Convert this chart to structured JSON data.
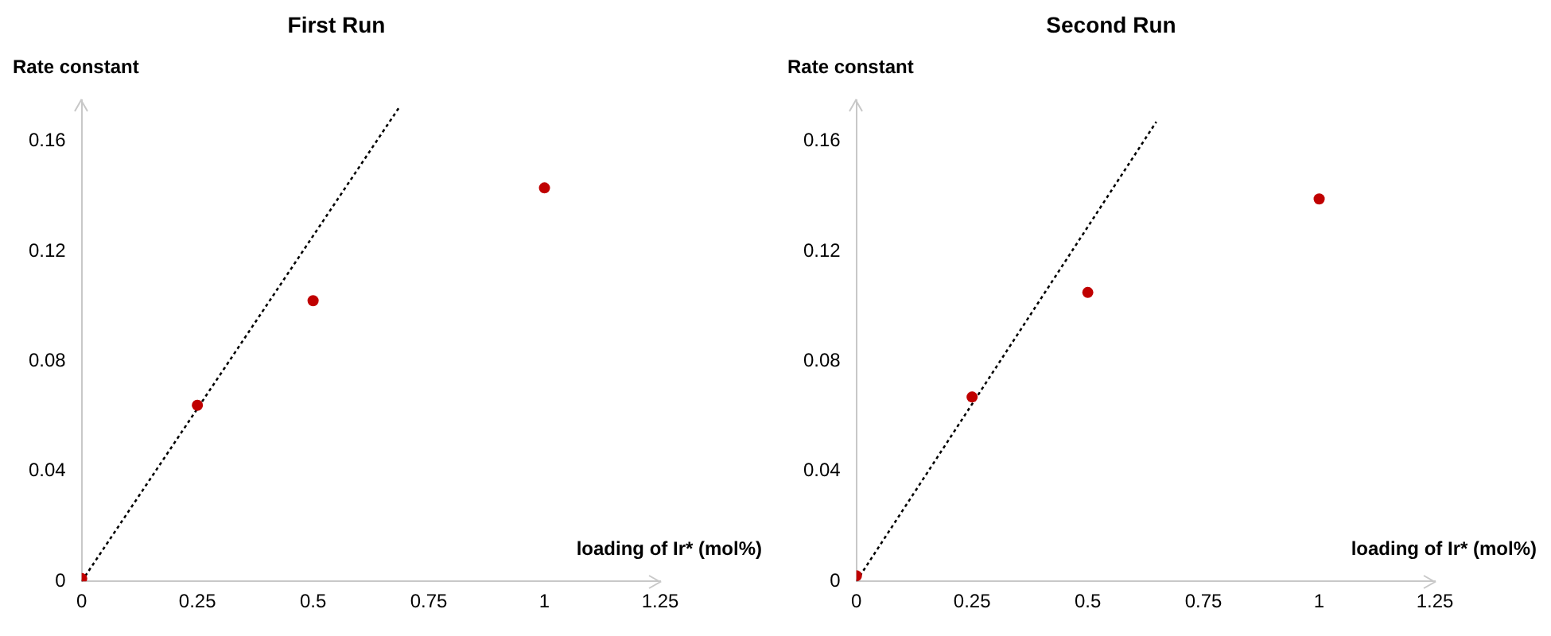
{
  "chart_data": [
    {
      "type": "scatter",
      "title": "First Run",
      "xlabel": "loading of Ir* (mol%)",
      "ylabel": "Rate constant",
      "xlim": [
        0,
        1.25
      ],
      "xticks": [
        0,
        0.25,
        0.5,
        0.75,
        1,
        1.25
      ],
      "ylim": [
        0,
        0.175
      ],
      "yticks": [
        0,
        0.04,
        0.08,
        0.12,
        0.16
      ],
      "grid": false,
      "legend": false,
      "marker": "circle",
      "series": [
        {
          "color": "#c00000",
          "x": [
            0,
            0.25,
            0.5,
            1
          ],
          "values": [
            0.001,
            0.064,
            0.102,
            0.143
          ]
        },
        {
          "type": "line",
          "color": "#000000",
          "line_style": "dotted",
          "marker": "none",
          "x": [
            0,
            0.685
          ],
          "values": [
            0,
            0.172
          ]
        }
      ]
    },
    {
      "type": "scatter",
      "title": "Second Run",
      "xlabel": "loading of Ir* (mol%)",
      "ylabel": "Rate constant",
      "xlim": [
        0,
        1.25
      ],
      "xticks": [
        0,
        0.25,
        0.5,
        0.75,
        1,
        1.25
      ],
      "ylim": [
        0,
        0.175
      ],
      "yticks": [
        0,
        0.04,
        0.08,
        0.12,
        0.16
      ],
      "grid": false,
      "legend": false,
      "marker": "circle",
      "series": [
        {
          "color": "#c00000",
          "x": [
            0,
            0.25,
            0.5,
            1
          ],
          "values": [
            0.002,
            0.067,
            0.105,
            0.139
          ]
        },
        {
          "type": "line",
          "color": "#000000",
          "line_style": "dotted",
          "marker": "none",
          "x": [
            0,
            0.648
          ],
          "values": [
            0,
            0.167
          ]
        }
      ]
    }
  ]
}
